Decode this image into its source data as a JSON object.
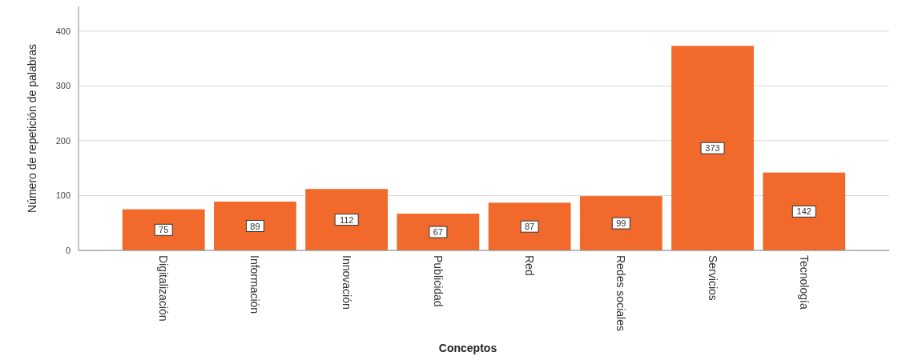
{
  "chart_data": {
    "type": "bar",
    "xlabel": "Conceptos",
    "ylabel": "Número de repetición de palabras",
    "categories": [
      "Digitalización",
      "Información",
      "Innovación",
      "Publicidad",
      "Red",
      "Redes sociales",
      "Servicios",
      "Tecnología"
    ],
    "values": [
      75,
      89,
      112,
      67,
      87,
      99,
      373,
      142
    ],
    "color": "#f26a2b",
    "ylim": [
      0,
      445
    ],
    "yticks": [
      0,
      100,
      200,
      300,
      400
    ],
    "grid": "y",
    "data_labels": true
  }
}
